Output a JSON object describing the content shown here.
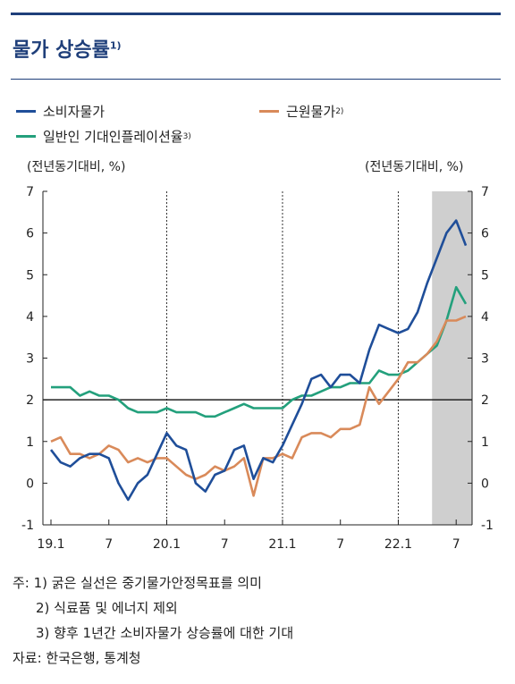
{
  "title": "물가 상승률",
  "title_note": "1)",
  "legend": {
    "cpi": {
      "label": "소비자물가",
      "note": "",
      "color": "#1f4e99"
    },
    "core": {
      "label": "근원물가",
      "note": "2)",
      "color": "#d98a5a"
    },
    "expect": {
      "label": "일반인 기대인플레이션율",
      "note": "3)",
      "color": "#23a07c"
    }
  },
  "unit_left": "(전년동기대비, %)",
  "unit_right": "(전년동기대비, %)",
  "notes": [
    "주: 1) 굵은 실선은 중기물가안정목표를 의미",
    "2) 식료품 및 에너지 제외",
    "3) 향후 1년간 소비자물가 상승률에 대한 기대"
  ],
  "source": "자료: 한국은행, 통계청",
  "chart_data": {
    "type": "line",
    "x_start": "2019-01",
    "x_ticks": [
      {
        "label": "19.1",
        "index": 0
      },
      {
        "label": "7",
        "index": 6
      },
      {
        "label": "20.1",
        "index": 12
      },
      {
        "label": "7",
        "index": 18
      },
      {
        "label": "21.1",
        "index": 24
      },
      {
        "label": "7",
        "index": 30
      },
      {
        "label": "22.1",
        "index": 36
      },
      {
        "label": "7",
        "index": 42
      }
    ],
    "ylim": [
      -1,
      7
    ],
    "yticks": [
      -1,
      0,
      1,
      2,
      3,
      4,
      5,
      6,
      7
    ],
    "target_line": 2,
    "year_dividers": [
      12,
      24,
      36
    ],
    "shaded_range": [
      40,
      43
    ],
    "series": [
      {
        "name": "소비자물가",
        "color": "#1f4e99",
        "values": [
          0.8,
          0.5,
          0.4,
          0.6,
          0.7,
          0.7,
          0.6,
          0.0,
          -0.4,
          0.0,
          0.2,
          0.7,
          1.2,
          0.9,
          0.8,
          0.0,
          -0.2,
          0.2,
          0.3,
          0.8,
          0.9,
          0.1,
          0.6,
          0.5,
          0.9,
          1.4,
          1.9,
          2.5,
          2.6,
          2.3,
          2.6,
          2.6,
          2.4,
          3.2,
          3.8,
          3.7,
          3.6,
          3.7,
          4.1,
          4.8,
          5.4,
          6.0,
          6.3,
          5.7
        ]
      },
      {
        "name": "근원물가",
        "color": "#d98a5a",
        "values": [
          1.0,
          1.1,
          0.7,
          0.7,
          0.6,
          0.7,
          0.9,
          0.8,
          0.5,
          0.6,
          0.5,
          0.6,
          0.6,
          0.4,
          0.2,
          0.1,
          0.2,
          0.4,
          0.3,
          0.4,
          0.6,
          -0.3,
          0.6,
          0.6,
          0.7,
          0.6,
          1.1,
          1.2,
          1.2,
          1.1,
          1.3,
          1.3,
          1.4,
          2.3,
          1.9,
          2.2,
          2.5,
          2.9,
          2.9,
          3.1,
          3.4,
          3.9,
          3.9,
          4.0
        ]
      },
      {
        "name": "일반인 기대인플레이션율",
        "color": "#23a07c",
        "values": [
          2.3,
          2.3,
          2.3,
          2.1,
          2.2,
          2.1,
          2.1,
          2.0,
          1.8,
          1.7,
          1.7,
          1.7,
          1.8,
          1.7,
          1.7,
          1.7,
          1.6,
          1.6,
          1.7,
          1.8,
          1.9,
          1.8,
          1.8,
          1.8,
          1.8,
          2.0,
          2.1,
          2.1,
          2.2,
          2.3,
          2.3,
          2.4,
          2.4,
          2.4,
          2.7,
          2.6,
          2.6,
          2.7,
          2.9,
          3.1,
          3.3,
          3.9,
          4.7,
          4.3
        ]
      }
    ]
  }
}
